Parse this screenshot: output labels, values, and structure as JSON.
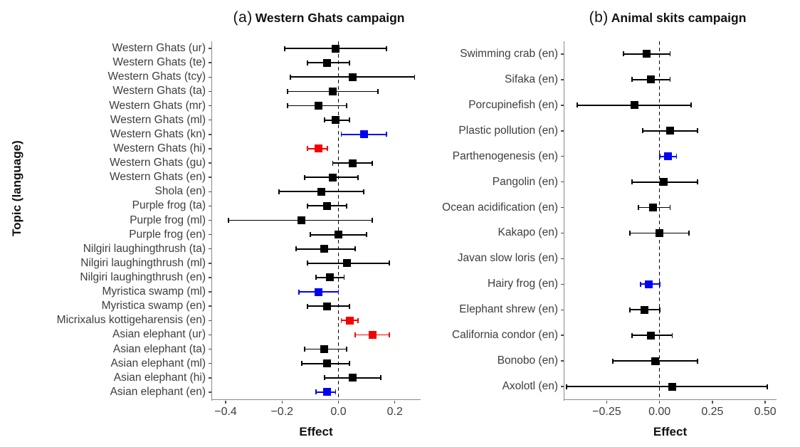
{
  "figure": {
    "y_axis_label": "Topic (language)",
    "colors": {
      "black": "#000000",
      "blue": "#0000f5",
      "red": "#f50000",
      "axis": "#8a8a8a",
      "label_text": "#3d3d3d"
    }
  },
  "chart_data": [
    {
      "type": "scatter",
      "subtype": "forest-plot",
      "panel_tag": "(a)",
      "title": "Western Ghats campaign",
      "xlabel": "Effect",
      "ylabel": "Topic (language)",
      "xlim": [
        -0.448,
        0.289
      ],
      "xticks": [
        -0.4,
        -0.2,
        0.0,
        0.2
      ],
      "xtick_labels": [
        "−0.4",
        "−0.2",
        "0.0",
        "0.2"
      ],
      "zero_line": 0,
      "grid": false,
      "legend": "none",
      "rows": [
        {
          "label": "Western Ghats (ur)",
          "estimate": -0.01,
          "ci": [
            -0.19,
            0.17
          ],
          "color": "black"
        },
        {
          "label": "Western Ghats (te)",
          "estimate": -0.04,
          "ci": [
            -0.11,
            0.04
          ],
          "color": "black"
        },
        {
          "label": "Western Ghats (tcy)",
          "estimate": 0.05,
          "ci": [
            -0.17,
            0.27
          ],
          "color": "black"
        },
        {
          "label": "Western Ghats (ta)",
          "estimate": -0.02,
          "ci": [
            -0.18,
            0.14
          ],
          "color": "black"
        },
        {
          "label": "Western Ghats (mr)",
          "estimate": -0.07,
          "ci": [
            -0.18,
            0.03
          ],
          "color": "black"
        },
        {
          "label": "Western Ghats (ml)",
          "estimate": -0.01,
          "ci": [
            -0.05,
            0.04
          ],
          "color": "black"
        },
        {
          "label": "Western Ghats (kn)",
          "estimate": 0.09,
          "ci": [
            0.01,
            0.17
          ],
          "color": "blue"
        },
        {
          "label": "Western Ghats (hi)",
          "estimate": -0.07,
          "ci": [
            -0.11,
            -0.04
          ],
          "color": "red"
        },
        {
          "label": "Western Ghats (gu)",
          "estimate": 0.05,
          "ci": [
            -0.02,
            0.12
          ],
          "color": "black"
        },
        {
          "label": "Western Ghats (en)",
          "estimate": -0.02,
          "ci": [
            -0.12,
            0.07
          ],
          "color": "black"
        },
        {
          "label": "Shola (en)",
          "estimate": -0.06,
          "ci": [
            -0.21,
            0.09
          ],
          "color": "black"
        },
        {
          "label": "Purple frog (ta)",
          "estimate": -0.04,
          "ci": [
            -0.11,
            0.03
          ],
          "color": "black"
        },
        {
          "label": "Purple frog (ml)",
          "estimate": -0.13,
          "ci": [
            -0.39,
            0.12
          ],
          "color": "black"
        },
        {
          "label": "Purple frog (en)",
          "estimate": 0.0,
          "ci": [
            -0.1,
            0.1
          ],
          "color": "black"
        },
        {
          "label": "Nilgiri laughingthrush (ta)",
          "estimate": -0.05,
          "ci": [
            -0.15,
            0.06
          ],
          "color": "black"
        },
        {
          "label": "Nilgiri laughingthrush (ml)",
          "estimate": 0.03,
          "ci": [
            -0.11,
            0.18
          ],
          "color": "black"
        },
        {
          "label": "Nilgiri laughingthrush (en)",
          "estimate": -0.03,
          "ci": [
            -0.08,
            0.02
          ],
          "color": "black"
        },
        {
          "label": "Myristica swamp (ml)",
          "estimate": -0.07,
          "ci": [
            -0.14,
            0.0
          ],
          "color": "blue"
        },
        {
          "label": "Myristica swamp (en)",
          "estimate": -0.04,
          "ci": [
            -0.11,
            0.04
          ],
          "color": "black"
        },
        {
          "label": "Micrixalus kottigeharensis (en)",
          "estimate": 0.04,
          "ci": [
            0.01,
            0.07
          ],
          "color": "red"
        },
        {
          "label": "Asian elephant (ur)",
          "estimate": 0.12,
          "ci": [
            0.06,
            0.18
          ],
          "color": "red"
        },
        {
          "label": "Asian elephant (ta)",
          "estimate": -0.05,
          "ci": [
            -0.12,
            0.03
          ],
          "color": "black"
        },
        {
          "label": "Asian elephant (ml)",
          "estimate": -0.04,
          "ci": [
            -0.13,
            0.04
          ],
          "color": "black"
        },
        {
          "label": "Asian elephant (hi)",
          "estimate": 0.05,
          "ci": [
            -0.05,
            0.15
          ],
          "color": "black"
        },
        {
          "label": "Asian elephant (en)",
          "estimate": -0.04,
          "ci": [
            -0.08,
            -0.01
          ],
          "color": "blue"
        }
      ]
    },
    {
      "type": "scatter",
      "subtype": "forest-plot",
      "panel_tag": "(b)",
      "title": "Animal skits campaign",
      "xlabel": "Effect",
      "ylabel": "Topic (language)",
      "xlim": [
        -0.45,
        0.55
      ],
      "xticks": [
        -0.25,
        0.0,
        0.25,
        0.5
      ],
      "xtick_labels": [
        "−0.25",
        "0.00",
        "0.25",
        "0.50"
      ],
      "zero_line": 0,
      "grid": false,
      "legend": "none",
      "rows": [
        {
          "label": "Swimming crab (en)",
          "estimate": -0.06,
          "ci": [
            -0.17,
            0.05
          ],
          "color": "black"
        },
        {
          "label": "Sifaka (en)",
          "estimate": -0.04,
          "ci": [
            -0.13,
            0.05
          ],
          "color": "black"
        },
        {
          "label": "Porcupinefish (en)",
          "estimate": -0.12,
          "ci": [
            -0.39,
            0.15
          ],
          "color": "black"
        },
        {
          "label": "Plastic pollution (en)",
          "estimate": 0.05,
          "ci": [
            -0.08,
            0.18
          ],
          "color": "black"
        },
        {
          "label": "Parthenogenesis (en)",
          "estimate": 0.04,
          "ci": [
            0.0,
            0.08
          ],
          "color": "blue"
        },
        {
          "label": "Pangolin (en)",
          "estimate": 0.02,
          "ci": [
            -0.13,
            0.18
          ],
          "color": "black"
        },
        {
          "label": "Ocean acidification (en)",
          "estimate": -0.03,
          "ci": [
            -0.1,
            0.05
          ],
          "color": "black"
        },
        {
          "label": "Kakapo (en)",
          "estimate": 0.0,
          "ci": [
            -0.14,
            0.14
          ],
          "color": "black"
        },
        {
          "label": "Javan slow loris (en)",
          "estimate": null,
          "ci": null,
          "color": "black"
        },
        {
          "label": "Hairy frog (en)",
          "estimate": -0.05,
          "ci": [
            -0.09,
            0.0
          ],
          "color": "blue"
        },
        {
          "label": "Elephant shrew (en)",
          "estimate": -0.07,
          "ci": [
            -0.14,
            0.0
          ],
          "color": "black"
        },
        {
          "label": "California condor (en)",
          "estimate": -0.04,
          "ci": [
            -0.13,
            0.06
          ],
          "color": "black"
        },
        {
          "label": "Bonobo (en)",
          "estimate": -0.02,
          "ci": [
            -0.22,
            0.18
          ],
          "color": "black"
        },
        {
          "label": "Axolotl (en)",
          "estimate": 0.06,
          "ci": [
            -0.44,
            0.51
          ],
          "color": "black"
        }
      ]
    }
  ]
}
